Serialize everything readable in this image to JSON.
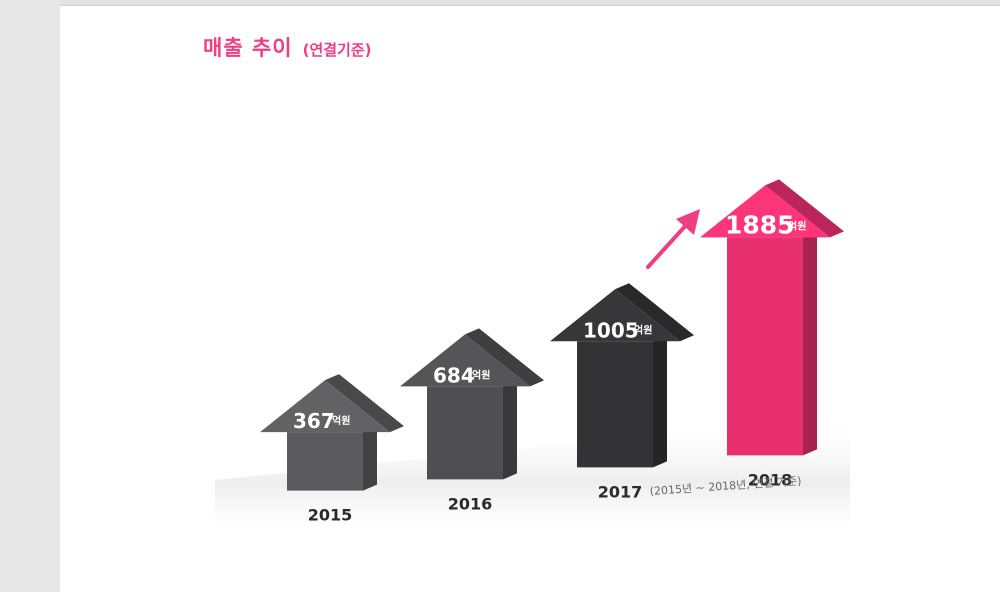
{
  "title": {
    "main": "매출 추이",
    "sub": "(연결기준)"
  },
  "colors": {
    "accent": "#ee3e84",
    "bar_2015": "#5b5b5d",
    "bar_2016": "#4f4f51",
    "bar_2017": "#333335",
    "bar_2018": "#e9306f"
  },
  "chart_data": {
    "type": "bar",
    "title": "매출 추이 (연결기준)",
    "unit": "억원",
    "categories": [
      "2015",
      "2016",
      "2017",
      "2018"
    ],
    "values": [
      367,
      684,
      1005,
      1885
    ],
    "value_labels": [
      "367",
      "684",
      "1005",
      "1885"
    ],
    "note": "(2015년 ~ 2018년, 연결 기준)",
    "grid": false,
    "legend": "none"
  }
}
